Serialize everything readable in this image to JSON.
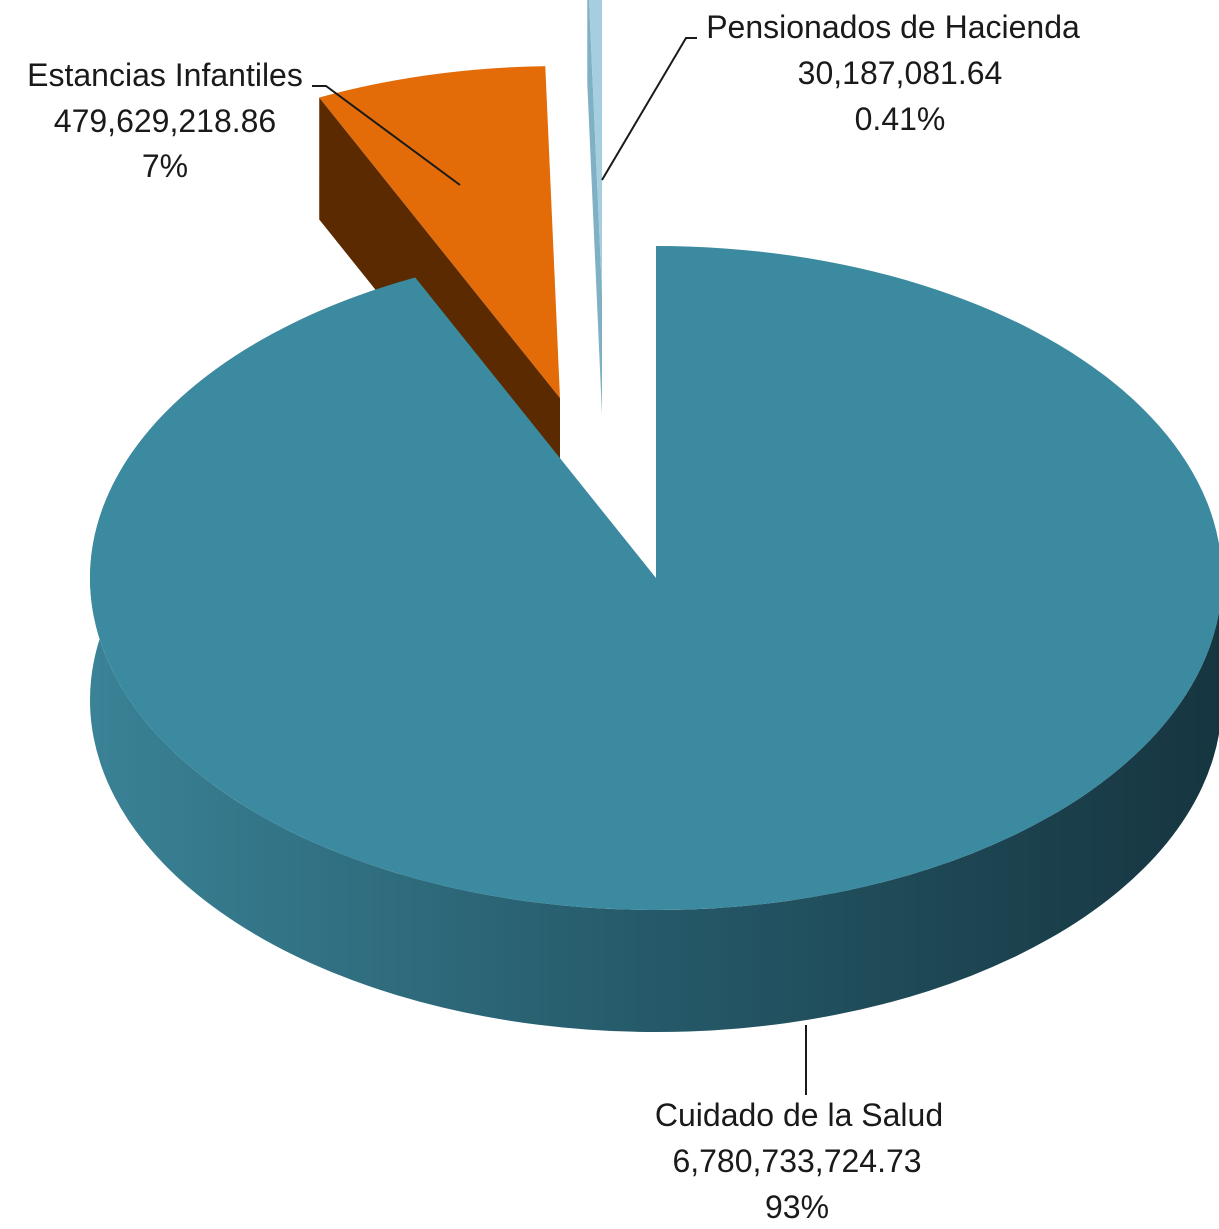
{
  "chart_data": {
    "type": "pie",
    "variant": "3d-exploded",
    "categories": [
      "Cuidado de la Salud",
      "Estancias Infantiles",
      "Pensionados de Hacienda"
    ],
    "values": [
      6780733724.73,
      479629218.86,
      30187081.64
    ],
    "value_labels": [
      "6,780,733,724.73",
      "479,629,218.86",
      "30,187,081.64"
    ],
    "percent_labels": [
      "93%",
      "7%",
      "0.41%"
    ],
    "colors": [
      "#3b8aa0",
      "#e36c09",
      "#a5cfe0"
    ],
    "side_colors": [
      "#2a6678",
      "#5c2a00",
      "#7fb0c4"
    ],
    "legend": "none"
  }
}
